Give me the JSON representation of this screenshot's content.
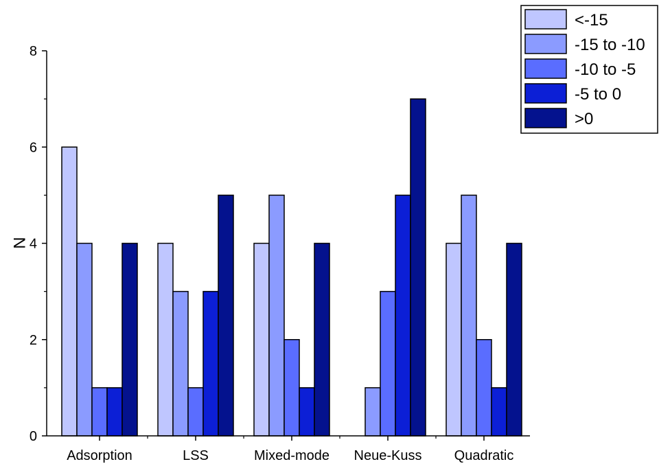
{
  "chart_data": {
    "type": "bar",
    "title": "",
    "xlabel": "",
    "ylabel": "N",
    "ylim": [
      0,
      8
    ],
    "yticks": [
      0,
      2,
      4,
      6,
      8
    ],
    "grid": false,
    "legend_position": "top-right",
    "categories": [
      "Adsorption",
      "LSS",
      "Mixed-mode",
      "Neue-Kuss",
      "Quadratic"
    ],
    "series": [
      {
        "name": "<-15",
        "color": "#bfc6ff",
        "values": [
          6,
          4,
          4,
          0,
          4
        ]
      },
      {
        "name": "-15 to -10",
        "color": "#8b9bff",
        "values": [
          4,
          3,
          5,
          1,
          5
        ]
      },
      {
        "name": "-10 to -5",
        "color": "#5a6dff",
        "values": [
          1,
          1,
          2,
          3,
          2
        ]
      },
      {
        "name": "-5 to 0",
        "color": "#0c1fd6",
        "values": [
          1,
          3,
          1,
          5,
          1
        ]
      },
      {
        "name": ">0",
        "color": "#04128e",
        "values": [
          4,
          5,
          4,
          7,
          4
        ]
      }
    ]
  }
}
